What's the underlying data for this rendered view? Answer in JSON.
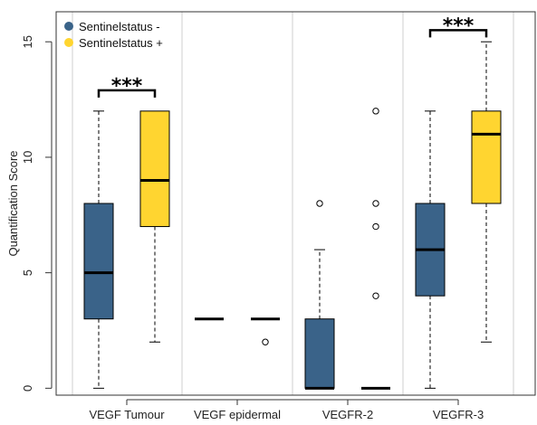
{
  "chart_data": {
    "type": "box",
    "ylabel": "Quantification Score",
    "ylim": [
      -0.3,
      16.3
    ],
    "y_ticks": [
      0,
      5,
      10,
      15
    ],
    "categories": [
      "VEGF Tumour",
      "VEGF epidermal",
      "VEGFR-2",
      "VEGFR-3"
    ],
    "series": [
      {
        "name": "Sentinelstatus -",
        "color": "#3A6389"
      },
      {
        "name": "Sentinelstatus +",
        "color": "#FFD530"
      }
    ],
    "boxes": [
      {
        "category": "VEGF Tumour",
        "series": "Sentinelstatus -",
        "min": 0,
        "q1": 3,
        "median": 5,
        "q3": 8,
        "max": 12,
        "outliers": []
      },
      {
        "category": "VEGF Tumour",
        "series": "Sentinelstatus +",
        "min": 2,
        "q1": 7,
        "median": 9,
        "q3": 12,
        "max": 12,
        "outliers": []
      },
      {
        "category": "VEGF epidermal",
        "series": "Sentinelstatus -",
        "min": 3,
        "q1": 3,
        "median": 3,
        "q3": 3,
        "max": 3,
        "outliers": []
      },
      {
        "category": "VEGF epidermal",
        "series": "Sentinelstatus +",
        "min": 3,
        "q1": 3,
        "median": 3,
        "q3": 3,
        "max": 3,
        "outliers": [
          2
        ]
      },
      {
        "category": "VEGFR-2",
        "series": "Sentinelstatus -",
        "min": 0,
        "q1": 0,
        "median": 0,
        "q3": 3,
        "max": 6,
        "outliers": [
          8
        ]
      },
      {
        "category": "VEGFR-2",
        "series": "Sentinelstatus +",
        "min": 0,
        "q1": 0,
        "median": 0,
        "q3": 0,
        "max": 0,
        "outliers": [
          4,
          7,
          8,
          12
        ]
      },
      {
        "category": "VEGFR-3",
        "series": "Sentinelstatus -",
        "min": 0,
        "q1": 4,
        "median": 6,
        "q3": 8,
        "max": 12,
        "outliers": []
      },
      {
        "category": "VEGFR-3",
        "series": "Sentinelstatus +",
        "min": 2,
        "q1": 8,
        "median": 11,
        "q3": 12,
        "max": 15,
        "outliers": []
      }
    ],
    "annotations": [
      {
        "category": "VEGF Tumour",
        "text": "***",
        "y": 12.9
      },
      {
        "category": "VEGFR-3",
        "text": "***",
        "y": 15.5
      }
    ],
    "legend": {
      "position": "top-left"
    },
    "grid": false
  }
}
